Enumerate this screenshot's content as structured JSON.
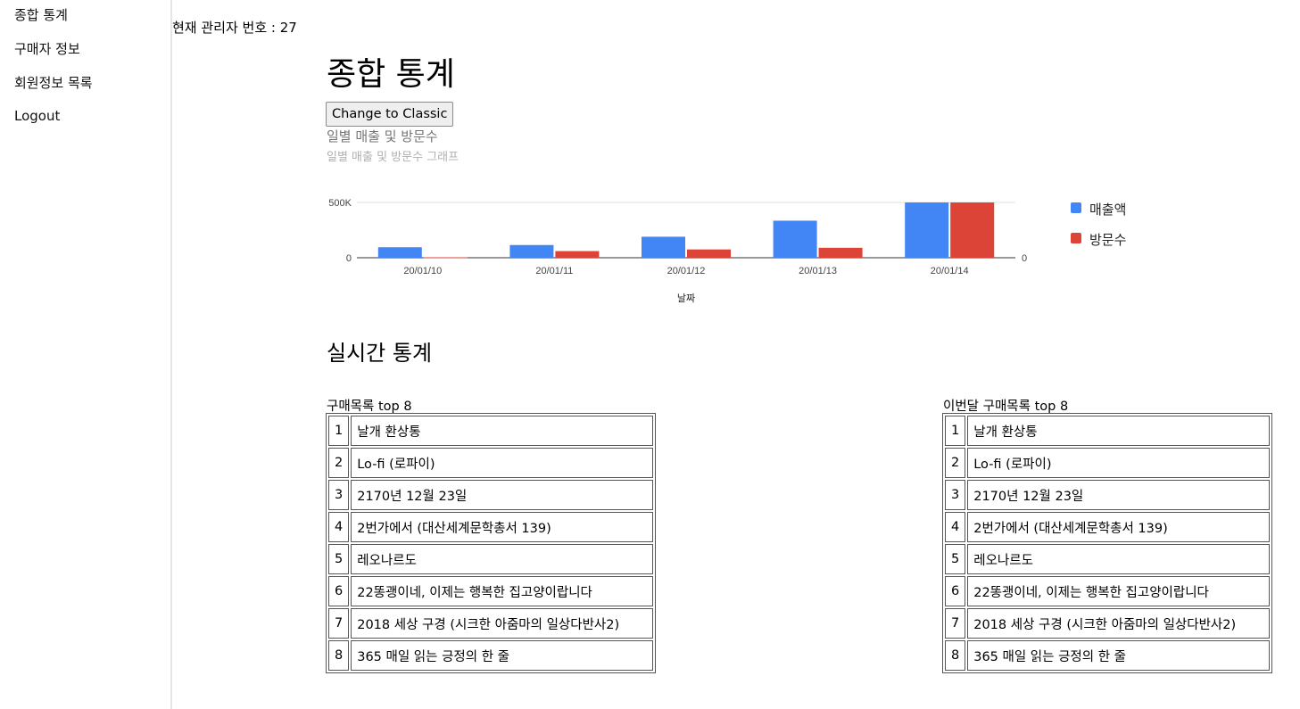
{
  "sidebar": {
    "items": [
      {
        "label": "종합 통계"
      },
      {
        "label": "구매자 정보"
      },
      {
        "label": "회원정보 목록"
      },
      {
        "label": "Logout"
      }
    ]
  },
  "header": {
    "admin_text": "현재 관리자 번호 : 27"
  },
  "main": {
    "title": "종합 통계",
    "toggle_button": "Change to Classic",
    "realtime_title": "실시간 통계"
  },
  "chart_data": {
    "type": "bar",
    "title": "일별 매출 및 방문수",
    "subtitle": "일별 매출 및 방문수 그래프",
    "xlabel": "날짜",
    "categories": [
      "20/01/10",
      "20/01/11",
      "20/01/12",
      "20/01/13",
      "20/01/14"
    ],
    "series": [
      {
        "name": "매출액",
        "color": "#4285f4",
        "values": [
          95000,
          115000,
          190000,
          335000,
          500000
        ]
      },
      {
        "name": "방문수",
        "color": "#db4437",
        "values": [
          4,
          60,
          75,
          90,
          500
        ]
      }
    ],
    "left_axis": {
      "min": 0,
      "max": 500000,
      "ticks": [
        "0",
        "500K"
      ]
    },
    "right_axis": {
      "min": 0,
      "max": 500,
      "ticks": [
        "0"
      ]
    },
    "legend_position": "right"
  },
  "tables": [
    {
      "caption": "구매목록 top 8",
      "rows": [
        {
          "rank": "1",
          "title": "날개 환상통"
        },
        {
          "rank": "2",
          "title": "Lo-fi (로파이)"
        },
        {
          "rank": "3",
          "title": "2170년 12월 23일"
        },
        {
          "rank": "4",
          "title": "2번가에서 (대산세계문학총서 139)"
        },
        {
          "rank": "5",
          "title": "레오나르도"
        },
        {
          "rank": "6",
          "title": "22똥괭이네, 이제는 행복한 집고양이랍니다"
        },
        {
          "rank": "7",
          "title": "2018 세상 구경 (시크한 아줌마의 일상다반사2)"
        },
        {
          "rank": "8",
          "title": "365 매일 읽는 긍정의 한 줄"
        }
      ]
    },
    {
      "caption": "이번달 구매목록 top 8",
      "rows": [
        {
          "rank": "1",
          "title": "날개 환상통"
        },
        {
          "rank": "2",
          "title": "Lo-fi (로파이)"
        },
        {
          "rank": "3",
          "title": "2170년 12월 23일"
        },
        {
          "rank": "4",
          "title": "2번가에서 (대산세계문학총서 139)"
        },
        {
          "rank": "5",
          "title": "레오나르도"
        },
        {
          "rank": "6",
          "title": "22똥괭이네, 이제는 행복한 집고양이랍니다"
        },
        {
          "rank": "7",
          "title": "2018 세상 구경 (시크한 아줌마의 일상다반사2)"
        },
        {
          "rank": "8",
          "title": "365 매일 읽는 긍정의 한 줄"
        }
      ]
    }
  ]
}
